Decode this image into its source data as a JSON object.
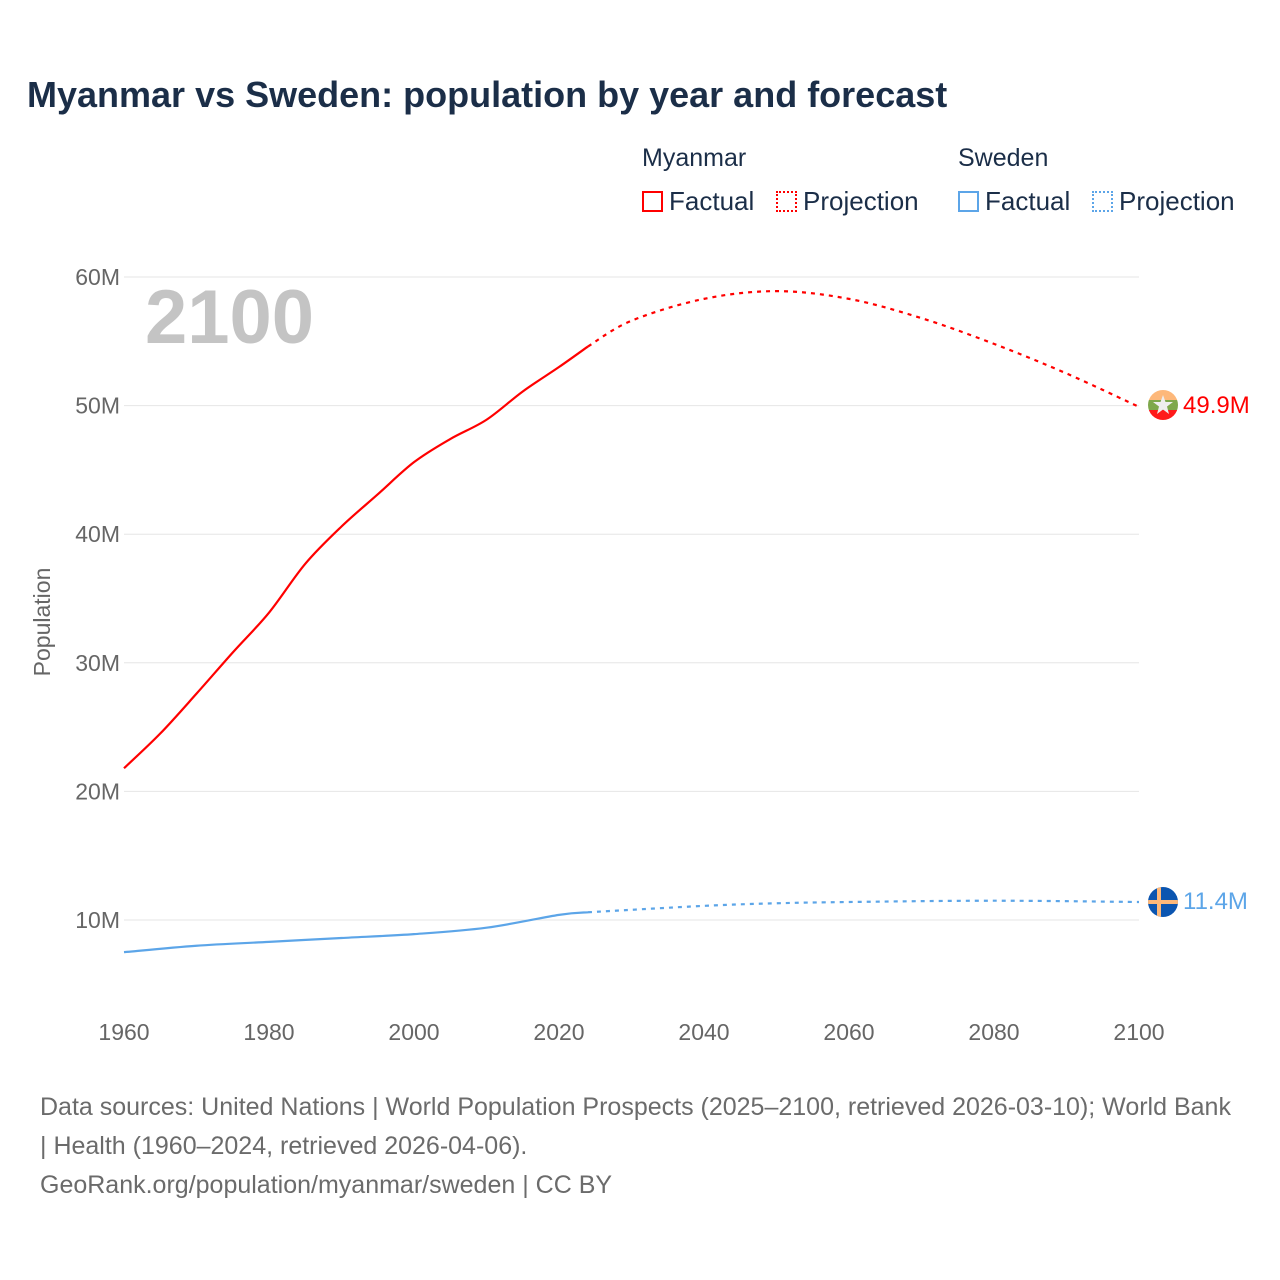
{
  "title": "Myanmar vs Sweden: population by year and forecast",
  "legend": {
    "groups": [
      {
        "name": "Myanmar",
        "color": "#ff0000",
        "factual": "Factual",
        "projection": "Projection"
      },
      {
        "name": "Sweden",
        "color": "#5ca5e8",
        "factual": "Factual",
        "projection": "Projection"
      }
    ]
  },
  "source": {
    "line1": "Data sources: United Nations | World Population Prospects (2025–2100, retrieved 2026-03-10); World Bank | Health (1960–2024, retrieved 2026-04-06).",
    "line2": "GeoRank.org/population/myanmar/sweden | CC BY"
  },
  "chart_data": {
    "type": "line",
    "title": "Myanmar vs Sweden: population by year and forecast",
    "year_label": "2100",
    "ylabel": "Population",
    "xlabel": "",
    "xlim": [
      1960,
      2100
    ],
    "ylim": [
      5,
      60
    ],
    "x_ticks": [
      "1960",
      "1980",
      "2000",
      "2020",
      "2040",
      "2060",
      "2080",
      "2100"
    ],
    "y_ticks": [
      {
        "v": 10,
        "label": "10M"
      },
      {
        "v": 20,
        "label": "20M"
      },
      {
        "v": 30,
        "label": "30M"
      },
      {
        "v": 40,
        "label": "40M"
      },
      {
        "v": 50,
        "label": "50M"
      },
      {
        "v": 60,
        "label": "60M"
      }
    ],
    "grid": true,
    "series": [
      {
        "name": "Myanmar",
        "color": "#ff0000",
        "end_label": "49.9M",
        "flag": "myanmar-flag",
        "factual": {
          "x": [
            1960,
            1965,
            1970,
            1975,
            1980,
            1985,
            1990,
            1995,
            2000,
            2005,
            2010,
            2015,
            2020,
            2024
          ],
          "y": [
            21.8,
            24.5,
            27.6,
            30.8,
            33.9,
            37.7,
            40.6,
            43.1,
            45.6,
            47.4,
            48.9,
            51.1,
            53.0,
            54.6
          ]
        },
        "projection": {
          "x": [
            2024,
            2030,
            2040,
            2050,
            2060,
            2070,
            2080,
            2090,
            2100
          ],
          "y": [
            54.6,
            56.6,
            58.3,
            58.9,
            58.3,
            56.8,
            54.8,
            52.5,
            49.9
          ]
        }
      },
      {
        "name": "Sweden",
        "color": "#5ca5e8",
        "end_label": "11.4M",
        "flag": "sweden-flag",
        "factual": {
          "x": [
            1960,
            1970,
            1980,
            1990,
            2000,
            2010,
            2020,
            2024
          ],
          "y": [
            7.5,
            8.0,
            8.3,
            8.6,
            8.9,
            9.4,
            10.4,
            10.6
          ]
        },
        "projection": {
          "x": [
            2024,
            2040,
            2050,
            2060,
            2080,
            2100
          ],
          "y": [
            10.6,
            11.1,
            11.3,
            11.4,
            11.5,
            11.4
          ]
        }
      }
    ]
  }
}
